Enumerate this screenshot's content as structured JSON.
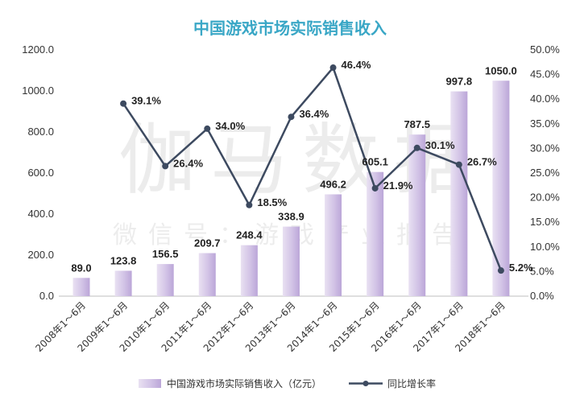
{
  "chart_data": {
    "type": "bar",
    "title": "中国游戏市场实际销售收入",
    "categories": [
      "2008年1～6月",
      "2009年1～6月",
      "2010年1～6月",
      "2011年1～6月",
      "2012年1～6月",
      "2013年1～6月",
      "2014年1～6月",
      "2015年1～6月",
      "2016年1～6月",
      "2017年1～6月",
      "2018年1～6月"
    ],
    "series": [
      {
        "name": "中国游戏市场实际销售收入（亿元）",
        "type": "bar",
        "axis": "left",
        "values": [
          89.0,
          123.8,
          156.5,
          209.7,
          248.4,
          338.9,
          496.2,
          605.1,
          787.5,
          997.8,
          1050.0
        ],
        "labels": [
          "89.0",
          "123.8",
          "156.5",
          "209.7",
          "248.4",
          "338.9",
          "496.2",
          "605.1",
          "787.5",
          "997.8",
          "1050.0"
        ]
      },
      {
        "name": "同比增长率",
        "type": "line",
        "axis": "right",
        "values": [
          null,
          39.1,
          26.4,
          34.0,
          18.5,
          36.4,
          46.4,
          21.9,
          30.1,
          26.7,
          5.2
        ],
        "labels": [
          null,
          "39.1%",
          "26.4%",
          "34.0%",
          "18.5%",
          "36.4%",
          "46.4%",
          "21.9%",
          "30.1%",
          "26.7%",
          "5.2%"
        ]
      }
    ],
    "y_left": {
      "ylim": [
        0,
        1200
      ],
      "ticks": [
        "0.0",
        "200.0",
        "400.0",
        "600.0",
        "800.0",
        "1000.0",
        "1200.0"
      ]
    },
    "y_right": {
      "ylim": [
        0,
        50
      ],
      "ticks": [
        "0.0%",
        "5.0%",
        "10.0%",
        "15.0%",
        "20.0%",
        "25.0%",
        "30.0%",
        "35.0%",
        "40.0%",
        "45.0%",
        "50.0%"
      ]
    },
    "grid": false,
    "legend_position": "bottom",
    "colors": {
      "bar": "#cdbde3",
      "bar_light": "#ece4f4",
      "line": "#3d4a60",
      "title": "#3aa7c6"
    }
  },
  "watermark": {
    "main": "伽马数据",
    "sub": "微信号：游戏产业报告"
  }
}
